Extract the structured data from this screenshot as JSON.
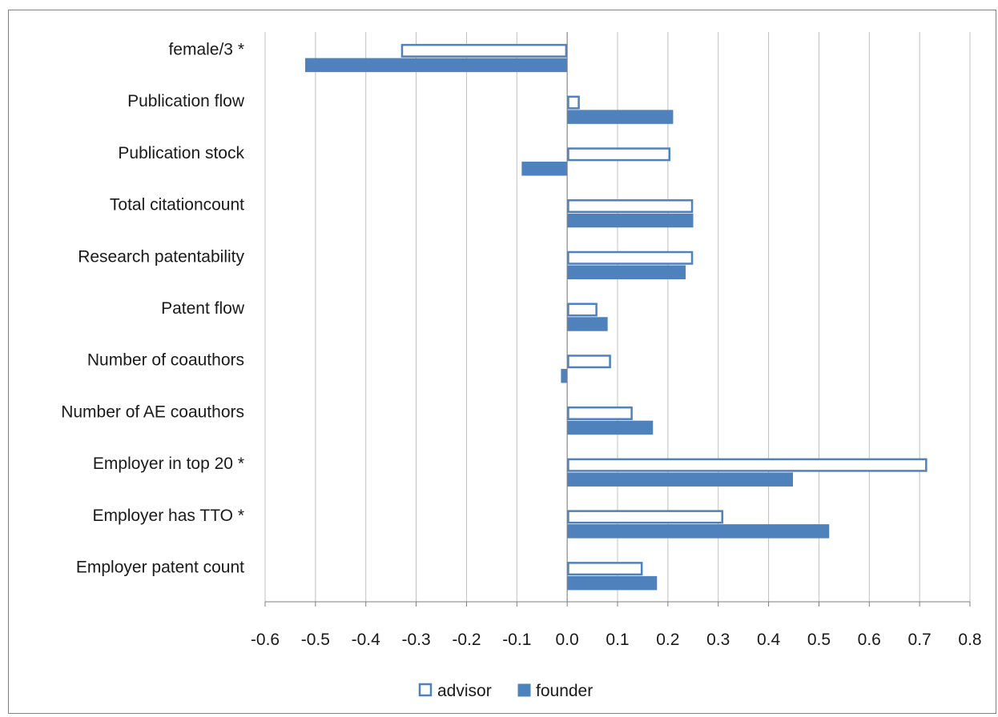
{
  "chart_data": {
    "type": "bar",
    "orientation": "horizontal",
    "title": "",
    "xlabel": "",
    "ylabel": "",
    "categories": [
      "female/3 *",
      "Publication flow",
      "Publication stock",
      "Total citationcount",
      "Research patentability",
      "Patent flow",
      "Number of coauthors",
      "Number of AE coauthors",
      "Employer in top 20 *",
      "Employer has TTO *",
      "Employer patent count"
    ],
    "series": [
      {
        "name": "advisor",
        "style": "outline",
        "color": "#4f81bd",
        "values": [
          -0.33,
          0.025,
          0.205,
          0.25,
          0.25,
          0.06,
          0.087,
          0.13,
          0.715,
          0.31,
          0.15
        ]
      },
      {
        "name": "founder",
        "style": "filled",
        "color": "#4f81bd",
        "values": [
          -0.52,
          0.21,
          -0.09,
          0.25,
          0.235,
          0.08,
          -0.012,
          0.17,
          0.448,
          0.52,
          0.178
        ]
      }
    ],
    "xlim": [
      -0.6,
      0.8
    ],
    "xticks": [
      "-0.6",
      "-0.5",
      "-0.4",
      "-0.3",
      "-0.2",
      "-0.1",
      "0.0",
      "0.1",
      "0.2",
      "0.3",
      "0.4",
      "0.5",
      "0.6",
      "0.7",
      "0.8"
    ],
    "grid": true,
    "legend": {
      "position": "bottom",
      "items": [
        "advisor",
        "founder"
      ]
    }
  }
}
